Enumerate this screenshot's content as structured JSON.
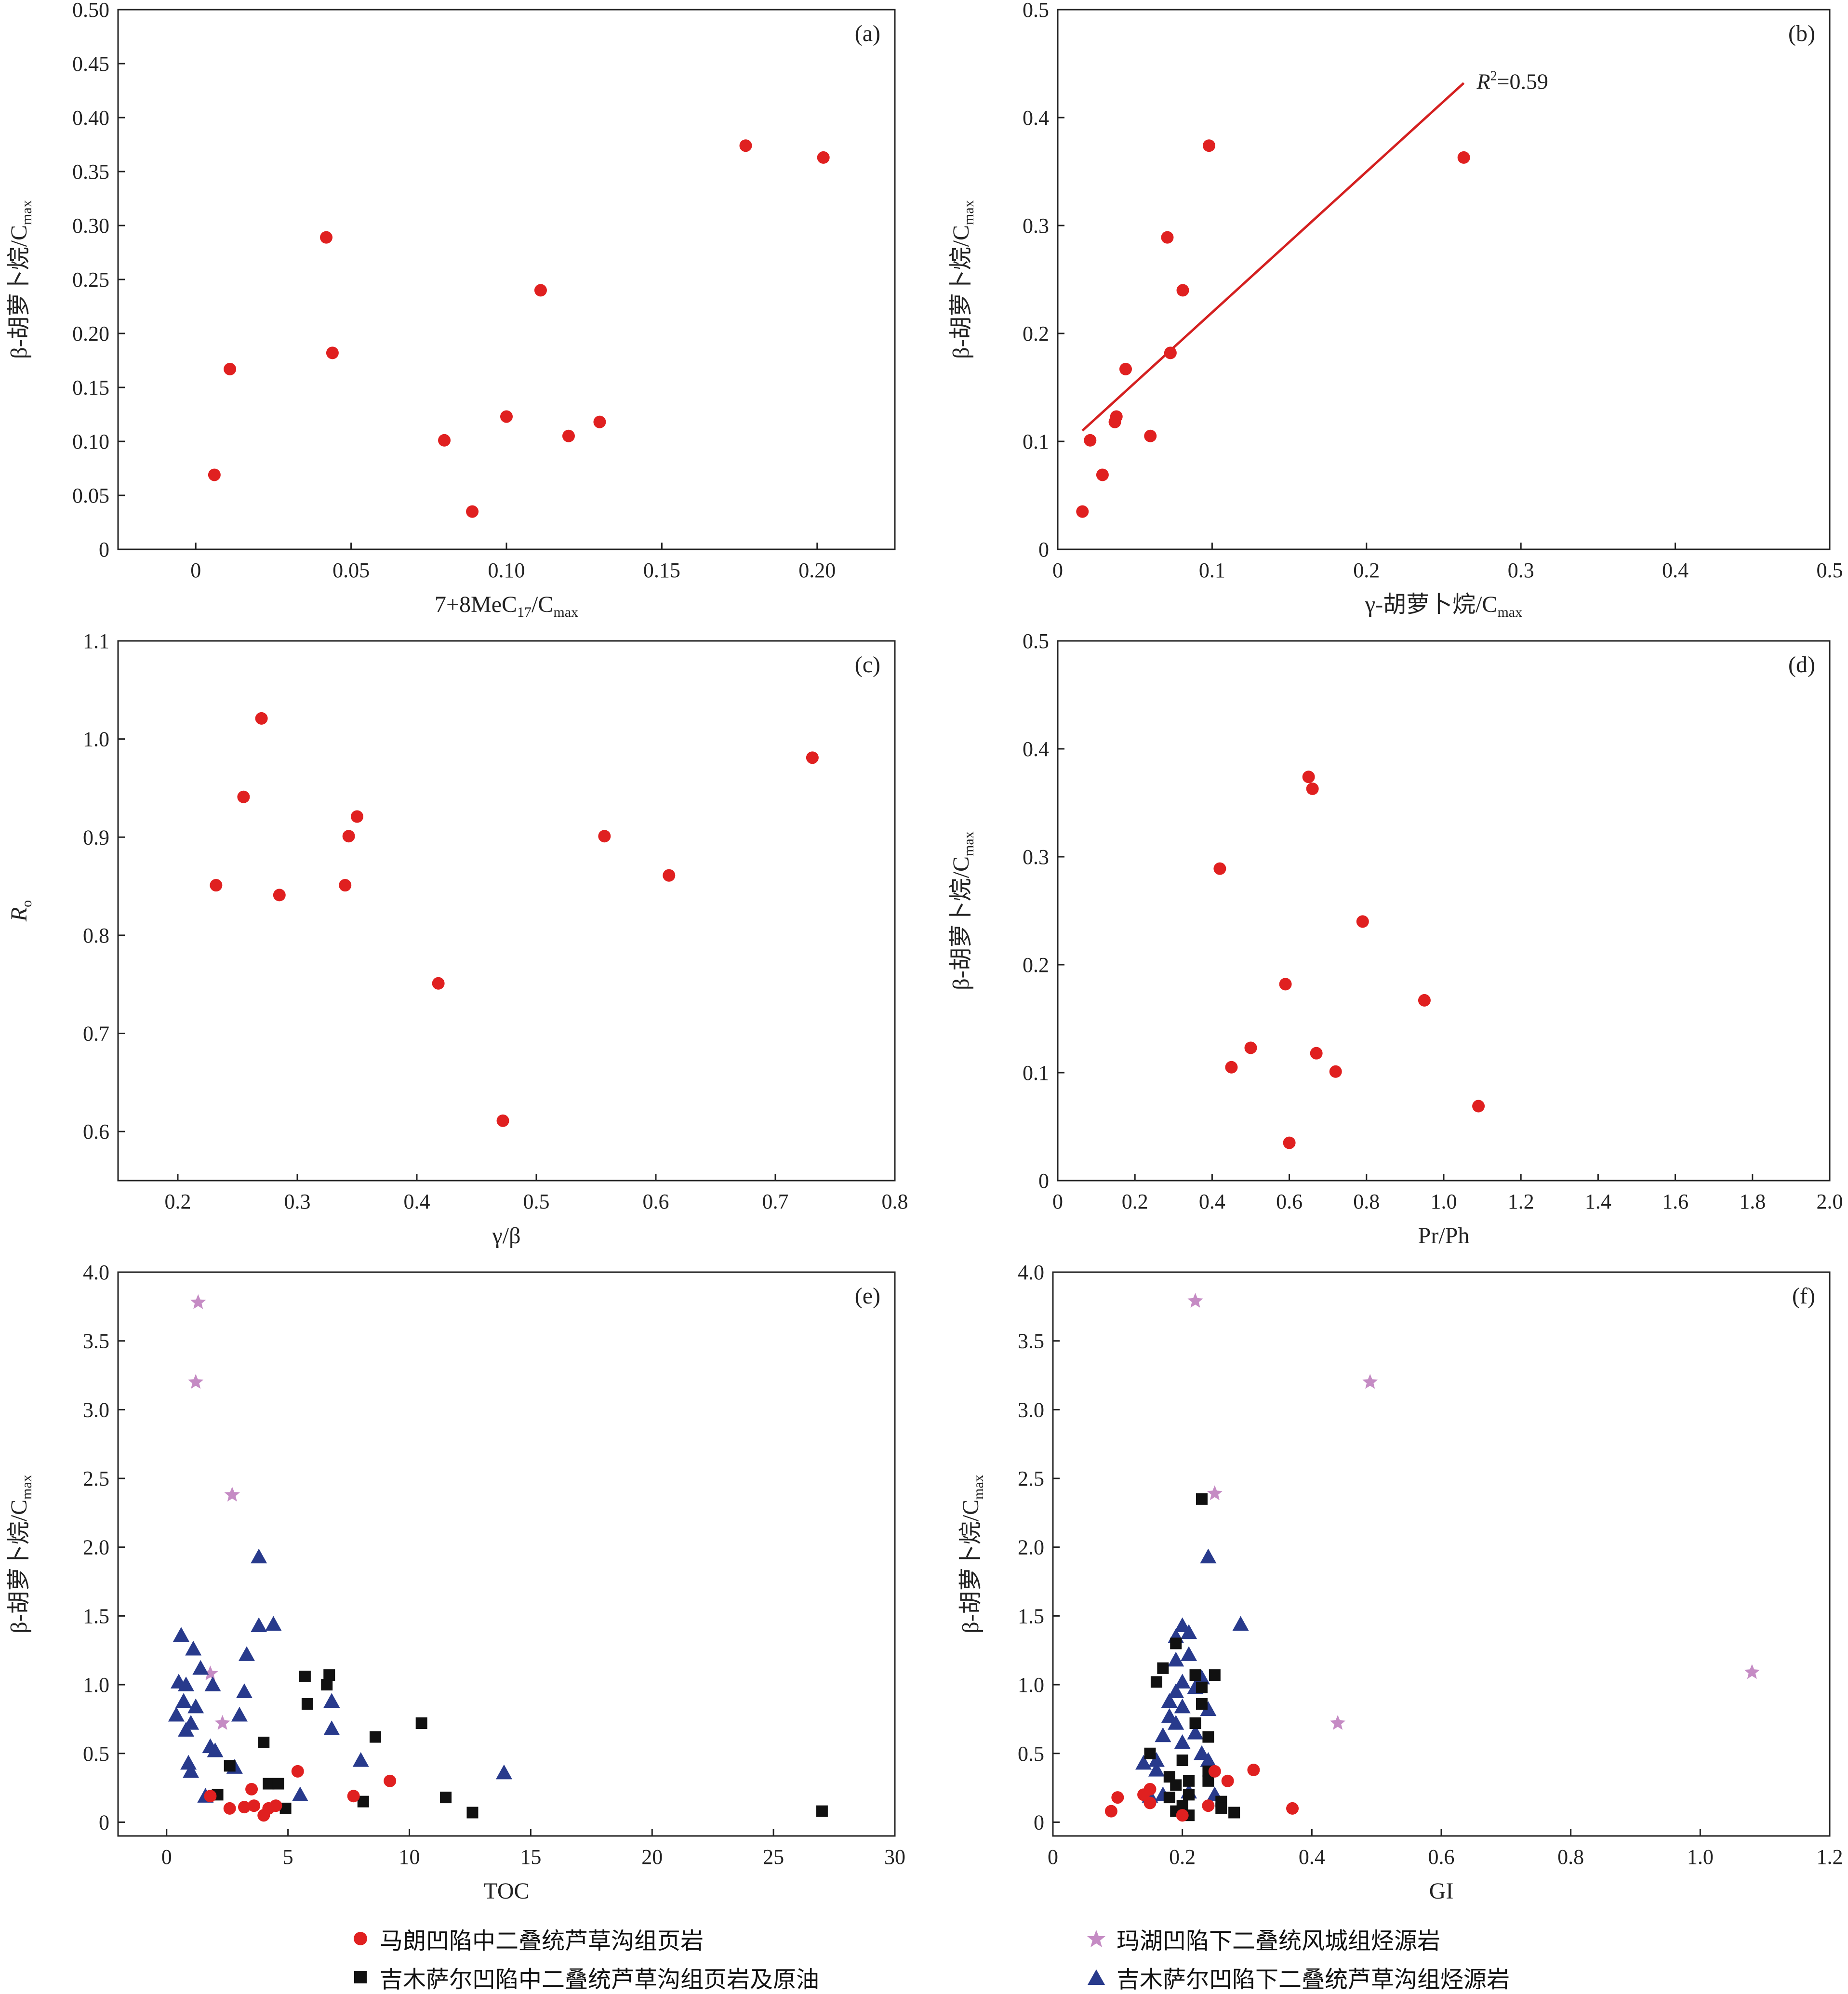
{
  "colors": {
    "red": "#e02020",
    "black": "#111111",
    "star": "#c58bc4",
    "blue": "#283a8c",
    "fit": "#d42020"
  },
  "chart_data": [
    {
      "id": "a",
      "type": "scatter",
      "panel_label": "(a)",
      "xlabel": "7+8MeC",
      "xlabel_sub": "17",
      "xlabel_suffix": "/C",
      "xlabel_sub2": "max",
      "ylabel": "β-胡萝卜烷/C",
      "ylabel_sub": "max",
      "xlim": [
        -0.025,
        0.225
      ],
      "ylim": [
        0,
        0.5
      ],
      "xticks": [
        "0",
        "0.05",
        "0.10",
        "0.15",
        "0.20"
      ],
      "xtick_values": [
        0,
        0.05,
        0.1,
        0.15,
        0.2
      ],
      "yticks": [
        "0",
        "0.05",
        "0.10",
        "0.15",
        "0.20",
        "0.25",
        "0.30",
        "0.35",
        "0.40",
        "0.45",
        "0.50"
      ],
      "ytick_values": [
        0,
        0.05,
        0.1,
        0.15,
        0.2,
        0.25,
        0.3,
        0.35,
        0.4,
        0.45,
        0.5
      ],
      "series": [
        {
          "marker": "circle",
          "color": "red",
          "points": [
            [
              0.006,
              0.069
            ],
            [
              0.011,
              0.167
            ],
            [
              0.042,
              0.289
            ],
            [
              0.044,
              0.182
            ],
            [
              0.08,
              0.101
            ],
            [
              0.089,
              0.035
            ],
            [
              0.1,
              0.123
            ],
            [
              0.111,
              0.24
            ],
            [
              0.12,
              0.105
            ],
            [
              0.13,
              0.118
            ],
            [
              0.177,
              0.374
            ],
            [
              0.202,
              0.363
            ]
          ]
        }
      ]
    },
    {
      "id": "b",
      "type": "scatter",
      "panel_label": "(b)",
      "xlabel": "γ-胡萝卜烷/C",
      "xlabel_sub": "max",
      "ylabel": "β-胡萝卜烷/C",
      "ylabel_sub": "max",
      "xlim": [
        0,
        0.5
      ],
      "ylim": [
        0,
        0.5
      ],
      "xticks": [
        "0",
        "0.1",
        "0.2",
        "0.3",
        "0.4",
        "0.5"
      ],
      "xtick_values": [
        0,
        0.1,
        0.2,
        0.3,
        0.4,
        0.5
      ],
      "yticks": [
        "0",
        "0.1",
        "0.2",
        "0.3",
        "0.4",
        "0.5"
      ],
      "ytick_values": [
        0,
        0.1,
        0.2,
        0.3,
        0.4,
        0.5
      ],
      "fit_line": {
        "from": [
          0.016,
          0.11
        ],
        "to": [
          0.263,
          0.432
        ]
      },
      "annotation": {
        "r": "R",
        "sup": "2",
        "rest": "=0.59",
        "at": [
          0.267,
          0.432
        ]
      },
      "series": [
        {
          "marker": "circle",
          "color": "red",
          "points": [
            [
              0.016,
              0.035
            ],
            [
              0.021,
              0.101
            ],
            [
              0.029,
              0.069
            ],
            [
              0.037,
              0.118
            ],
            [
              0.038,
              0.123
            ],
            [
              0.044,
              0.167
            ],
            [
              0.06,
              0.105
            ],
            [
              0.071,
              0.289
            ],
            [
              0.073,
              0.182
            ],
            [
              0.081,
              0.24
            ],
            [
              0.098,
              0.374
            ],
            [
              0.263,
              0.363
            ]
          ]
        }
      ]
    },
    {
      "id": "c",
      "type": "scatter",
      "panel_label": "(c)",
      "xlabel": "γ/β",
      "ylabel": "R",
      "ylabel_sub": "o",
      "ylabel_italic": true,
      "xlim": [
        0.15,
        0.8
      ],
      "ylim": [
        0.55,
        1.1
      ],
      "xticks": [
        "0.2",
        "0.3",
        "0.4",
        "0.5",
        "0.6",
        "0.7",
        "0.8"
      ],
      "xtick_values": [
        0.2,
        0.3,
        0.4,
        0.5,
        0.6,
        0.7,
        0.8
      ],
      "yticks": [
        "0.6",
        "0.7",
        "0.8",
        "0.9",
        "1.0",
        "1.1"
      ],
      "ytick_values": [
        0.6,
        0.7,
        0.8,
        0.9,
        1.0,
        1.1
      ],
      "series": [
        {
          "marker": "circle",
          "color": "red",
          "points": [
            [
              0.232,
              0.851
            ],
            [
              0.255,
              0.941
            ],
            [
              0.27,
              1.021
            ],
            [
              0.285,
              0.841
            ],
            [
              0.34,
              0.851
            ],
            [
              0.343,
              0.901
            ],
            [
              0.35,
              0.921
            ],
            [
              0.418,
              0.751
            ],
            [
              0.472,
              0.611
            ],
            [
              0.557,
              0.901
            ],
            [
              0.611,
              0.861
            ],
            [
              0.731,
              0.981
            ]
          ]
        }
      ]
    },
    {
      "id": "d",
      "type": "scatter",
      "panel_label": "(d)",
      "xlabel": "Pr/Ph",
      "ylabel": "β-胡萝卜烷/C",
      "ylabel_sub": "max",
      "xlim": [
        0,
        2.0
      ],
      "ylim": [
        0,
        0.5
      ],
      "xticks": [
        "0",
        "0.2",
        "0.4",
        "0.6",
        "0.8",
        "1.0",
        "1.2",
        "1.4",
        "1.6",
        "1.8",
        "2.0"
      ],
      "xtick_values": [
        0,
        0.2,
        0.4,
        0.6,
        0.8,
        1.0,
        1.2,
        1.4,
        1.6,
        1.8,
        2.0
      ],
      "yticks": [
        "0",
        "0.1",
        "0.2",
        "0.3",
        "0.4",
        "0.5"
      ],
      "ytick_values": [
        0,
        0.1,
        0.2,
        0.3,
        0.4,
        0.5
      ],
      "series": [
        {
          "marker": "circle",
          "color": "red",
          "points": [
            [
              0.42,
              0.289
            ],
            [
              0.45,
              0.105
            ],
            [
              0.5,
              0.123
            ],
            [
              0.59,
              0.182
            ],
            [
              0.6,
              0.035
            ],
            [
              0.65,
              0.374
            ],
            [
              0.66,
              0.363
            ],
            [
              0.67,
              0.118
            ],
            [
              0.72,
              0.101
            ],
            [
              0.79,
              0.24
            ],
            [
              0.95,
              0.167
            ],
            [
              1.09,
              0.069
            ]
          ]
        }
      ]
    },
    {
      "id": "e",
      "type": "scatter",
      "panel_label": "(e)",
      "xlabel": "TOC",
      "ylabel": "β-胡萝卜烷/C",
      "ylabel_sub": "max",
      "xlim": [
        -2,
        30
      ],
      "ylim": [
        -0.1,
        4.0
      ],
      "xticks": [
        "0",
        "5",
        "10",
        "15",
        "20",
        "25",
        "30"
      ],
      "xtick_values": [
        0,
        5,
        10,
        15,
        20,
        25,
        30
      ],
      "yticks": [
        "0",
        "0.5",
        "1.0",
        "1.5",
        "2.0",
        "2.5",
        "3.0",
        "3.5",
        "4.0"
      ],
      "ytick_values": [
        0,
        0.5,
        1.0,
        1.5,
        2.0,
        2.5,
        3.0,
        3.5,
        4.0
      ],
      "series": [
        {
          "marker": "star",
          "color": "star",
          "points": [
            [
              1.3,
              3.78
            ],
            [
              1.2,
              3.2
            ],
            [
              2.7,
              2.38
            ],
            [
              1.8,
              1.08
            ],
            [
              2.3,
              0.72
            ]
          ]
        },
        {
          "marker": "triangle",
          "color": "blue",
          "points": [
            [
              0.4,
              0.78
            ],
            [
              0.5,
              1.02
            ],
            [
              0.6,
              1.36
            ],
            [
              0.7,
              0.88
            ],
            [
              0.8,
              1.0
            ],
            [
              0.8,
              0.67
            ],
            [
              0.9,
              0.43
            ],
            [
              1.0,
              0.72
            ],
            [
              1.0,
              0.37
            ],
            [
              1.1,
              1.26
            ],
            [
              1.2,
              0.84
            ],
            [
              1.4,
              1.12
            ],
            [
              1.6,
              0.19
            ],
            [
              1.8,
              0.55
            ],
            [
              1.9,
              1.0
            ],
            [
              2.0,
              0.52
            ],
            [
              2.8,
              0.4
            ],
            [
              3.0,
              0.78
            ],
            [
              3.2,
              0.95
            ],
            [
              3.3,
              1.22
            ],
            [
              3.8,
              1.93
            ],
            [
              3.8,
              1.43
            ],
            [
              4.4,
              1.44
            ],
            [
              5.5,
              0.2
            ],
            [
              6.8,
              0.88
            ],
            [
              6.8,
              0.68
            ],
            [
              8.0,
              0.45
            ],
            [
              13.9,
              0.36
            ]
          ]
        },
        {
          "marker": "square",
          "color": "black",
          "points": [
            [
              2.1,
              0.2
            ],
            [
              2.6,
              0.41
            ],
            [
              4.0,
              0.58
            ],
            [
              4.2,
              0.28
            ],
            [
              4.6,
              0.28
            ],
            [
              4.9,
              0.1
            ],
            [
              5.7,
              1.06
            ],
            [
              5.8,
              0.86
            ],
            [
              6.6,
              1.0
            ],
            [
              6.7,
              1.07
            ],
            [
              8.1,
              0.15
            ],
            [
              8.6,
              0.62
            ],
            [
              10.5,
              0.72
            ],
            [
              11.5,
              0.18
            ],
            [
              12.6,
              0.07
            ],
            [
              27.0,
              0.08
            ]
          ]
        },
        {
          "marker": "circle",
          "color": "red",
          "points": [
            [
              1.8,
              0.19
            ],
            [
              2.6,
              0.1
            ],
            [
              3.2,
              0.11
            ],
            [
              3.5,
              0.24
            ],
            [
              3.6,
              0.12
            ],
            [
              4.0,
              0.05
            ],
            [
              4.2,
              0.1
            ],
            [
              4.5,
              0.12
            ],
            [
              5.4,
              0.37
            ],
            [
              7.7,
              0.19
            ],
            [
              9.2,
              0.3
            ]
          ]
        }
      ]
    },
    {
      "id": "f",
      "type": "scatter",
      "panel_label": "(f)",
      "xlabel": "GI",
      "ylabel": "β-胡萝卜烷/C",
      "ylabel_sub": "max",
      "xlim": [
        0,
        1.2
      ],
      "ylim": [
        -0.1,
        4.0
      ],
      "xticks": [
        "0",
        "0.2",
        "0.4",
        "0.6",
        "0.8",
        "1.0",
        "1.2"
      ],
      "xtick_values": [
        0,
        0.2,
        0.4,
        0.6,
        0.8,
        1.0,
        1.2
      ],
      "yticks": [
        "0",
        "0.5",
        "1.0",
        "1.5",
        "2.0",
        "2.5",
        "3.0",
        "3.5",
        "4.0"
      ],
      "ytick_values": [
        0,
        0.5,
        1.0,
        1.5,
        2.0,
        2.5,
        3.0,
        3.5,
        4.0
      ],
      "series": [
        {
          "marker": "star",
          "color": "star",
          "points": [
            [
              0.22,
              3.79
            ],
            [
              0.25,
              2.39
            ],
            [
              0.49,
              3.2
            ],
            [
              0.44,
              0.72
            ],
            [
              1.08,
              1.09
            ]
          ]
        },
        {
          "marker": "triangle",
          "color": "blue",
          "points": [
            [
              0.14,
              0.43
            ],
            [
              0.15,
              0.19
            ],
            [
              0.16,
              0.38
            ],
            [
              0.16,
              0.45
            ],
            [
              0.17,
              0.2
            ],
            [
              0.17,
              0.63
            ],
            [
              0.18,
              0.88
            ],
            [
              0.18,
              0.77
            ],
            [
              0.19,
              0.95
            ],
            [
              0.19,
              0.72
            ],
            [
              0.19,
              1.18
            ],
            [
              0.19,
              1.35
            ],
            [
              0.2,
              1.02
            ],
            [
              0.2,
              0.84
            ],
            [
              0.2,
              0.58
            ],
            [
              0.2,
              1.43
            ],
            [
              0.21,
              1.22
            ],
            [
              0.21,
              1.38
            ],
            [
              0.22,
              0.98
            ],
            [
              0.22,
              0.65
            ],
            [
              0.23,
              1.05
            ],
            [
              0.23,
              0.5
            ],
            [
              0.24,
              1.93
            ],
            [
              0.24,
              0.82
            ],
            [
              0.24,
              0.45
            ],
            [
              0.25,
              0.2
            ],
            [
              0.29,
              1.44
            ],
            [
              0.21,
              0.22
            ]
          ]
        },
        {
          "marker": "square",
          "color": "black",
          "points": [
            [
              0.15,
              0.5
            ],
            [
              0.16,
              1.02
            ],
            [
              0.17,
              1.12
            ],
            [
              0.18,
              0.33
            ],
            [
              0.18,
              0.18
            ],
            [
              0.19,
              0.27
            ],
            [
              0.19,
              0.08
            ],
            [
              0.19,
              1.3
            ],
            [
              0.2,
              0.45
            ],
            [
              0.2,
              0.12
            ],
            [
              0.21,
              0.3
            ],
            [
              0.21,
              0.05
            ],
            [
              0.21,
              0.2
            ],
            [
              0.22,
              1.07
            ],
            [
              0.22,
              0.72
            ],
            [
              0.23,
              0.86
            ],
            [
              0.23,
              0.98
            ],
            [
              0.23,
              2.35
            ],
            [
              0.24,
              0.62
            ],
            [
              0.24,
              0.37
            ],
            [
              0.24,
              0.3
            ],
            [
              0.25,
              1.07
            ],
            [
              0.26,
              0.15
            ],
            [
              0.26,
              0.1
            ],
            [
              0.28,
              0.07
            ]
          ]
        },
        {
          "marker": "circle",
          "color": "red",
          "points": [
            [
              0.09,
              0.08
            ],
            [
              0.1,
              0.18
            ],
            [
              0.14,
              0.2
            ],
            [
              0.15,
              0.14
            ],
            [
              0.15,
              0.24
            ],
            [
              0.2,
              0.05
            ],
            [
              0.24,
              0.12
            ],
            [
              0.25,
              0.37
            ],
            [
              0.27,
              0.3
            ],
            [
              0.31,
              0.38
            ],
            [
              0.37,
              0.1
            ]
          ]
        }
      ]
    }
  ],
  "legend": [
    {
      "marker": "circle",
      "color": "red",
      "label": "马朗凹陷中二叠统芦草沟组页岩"
    },
    {
      "marker": "star",
      "color": "star",
      "label": "玛湖凹陷下二叠统风城组烃源岩"
    },
    {
      "marker": "square",
      "color": "black",
      "label": "吉木萨尔凹陷中二叠统芦草沟组页岩及原油"
    },
    {
      "marker": "triangle",
      "color": "blue",
      "label": "吉木萨尔凹陷下二叠统芦草沟组烃源岩"
    }
  ]
}
